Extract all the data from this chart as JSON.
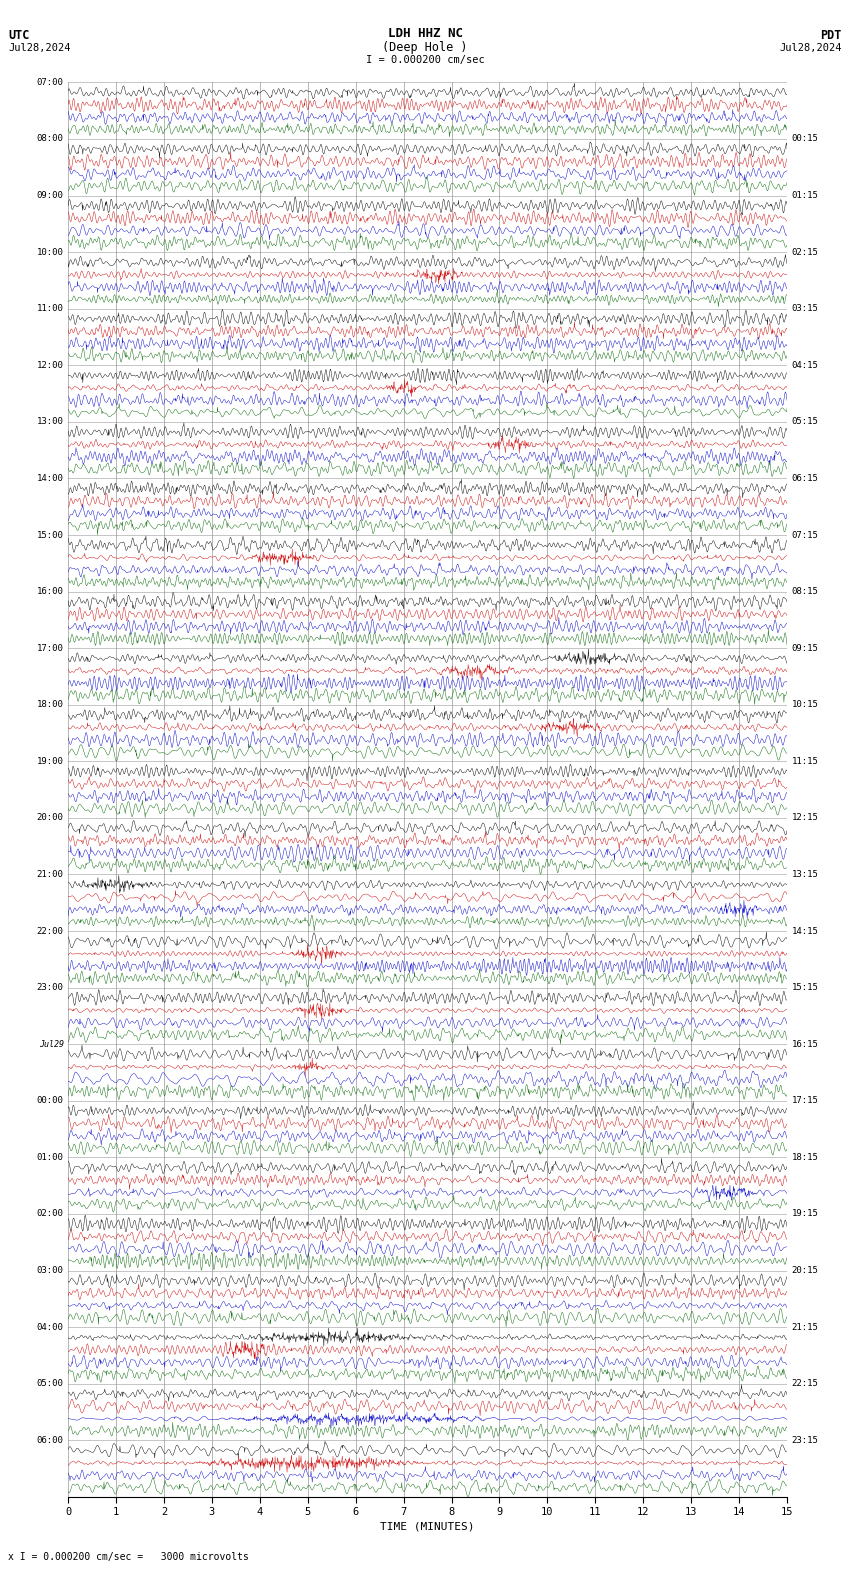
{
  "title_line1": "LDH HHZ NC",
  "title_line2": "(Deep Hole )",
  "scale_label": "I = 0.000200 cm/sec",
  "bottom_label": "x I = 0.000200 cm/sec =   3000 microvolts",
  "utc_label": "UTC",
  "pdt_label": "PDT",
  "date_left": "Jul28,2024",
  "date_right": "Jul28,2024",
  "xlabel": "TIME (MINUTES)",
  "bg_color": "#ffffff",
  "trace_colors": [
    "#000000",
    "#cc0000",
    "#0000cc",
    "#006600"
  ],
  "grid_color": "#999999",
  "utc_times": [
    "07:00",
    "08:00",
    "09:00",
    "10:00",
    "11:00",
    "12:00",
    "13:00",
    "14:00",
    "15:00",
    "16:00",
    "17:00",
    "18:00",
    "19:00",
    "20:00",
    "21:00",
    "22:00",
    "23:00",
    "Jul29",
    "00:00",
    "01:00",
    "02:00",
    "03:00",
    "04:00",
    "05:00",
    "06:00"
  ],
  "pdt_times": [
    "00:15",
    "01:15",
    "02:15",
    "03:15",
    "04:15",
    "05:15",
    "06:15",
    "07:15",
    "08:15",
    "09:15",
    "10:15",
    "11:15",
    "12:15",
    "13:15",
    "14:15",
    "15:15",
    "16:15",
    "17:15",
    "18:15",
    "19:15",
    "20:15",
    "21:15",
    "22:15",
    "23:15"
  ],
  "n_rows": 25,
  "n_traces_per_row": 4,
  "minutes": 15,
  "base_noise": 0.025,
  "special_events": [
    {
      "row": 8,
      "trace": 1,
      "t0": 3.5,
      "t1": 5.5,
      "amp": 0.18
    },
    {
      "row": 10,
      "trace": 1,
      "t0": 7.5,
      "t1": 9.5,
      "amp": 0.14
    },
    {
      "row": 10,
      "trace": 0,
      "t0": 9.8,
      "t1": 12.0,
      "amp": 0.1
    },
    {
      "row": 14,
      "trace": 0,
      "t0": 0.0,
      "t1": 2.0,
      "amp": 0.12
    },
    {
      "row": 15,
      "trace": 1,
      "t0": 4.5,
      "t1": 6.0,
      "amp": 0.2
    },
    {
      "row": 16,
      "trace": 1,
      "t0": 4.5,
      "t1": 6.0,
      "amp": 0.2
    },
    {
      "row": 17,
      "trace": 1,
      "t0": 4.5,
      "t1": 5.5,
      "amp": 0.22
    },
    {
      "row": 6,
      "trace": 1,
      "t0": 8.5,
      "t1": 10.0,
      "amp": 0.12
    },
    {
      "row": 11,
      "trace": 1,
      "t0": 9.5,
      "t1": 11.5,
      "amp": 0.13
    },
    {
      "row": 14,
      "trace": 2,
      "t0": 13.5,
      "t1": 14.5,
      "amp": 0.12
    },
    {
      "row": 19,
      "trace": 2,
      "t0": 13.0,
      "t1": 14.5,
      "amp": 0.13
    },
    {
      "row": 22,
      "trace": 0,
      "t0": 3.0,
      "t1": 8.0,
      "amp": 0.22
    },
    {
      "row": 22,
      "trace": 1,
      "t0": 3.0,
      "t1": 4.5,
      "amp": 0.14
    },
    {
      "row": 23,
      "trace": 2,
      "t0": 2.5,
      "t1": 9.5,
      "amp": 0.18
    },
    {
      "row": 24,
      "trace": 1,
      "t0": 2.0,
      "t1": 8.0,
      "amp": 0.22
    },
    {
      "row": 5,
      "trace": 1,
      "t0": 6.5,
      "t1": 7.5,
      "amp": 0.12
    },
    {
      "row": 3,
      "trace": 1,
      "t0": 7.0,
      "t1": 8.5,
      "amp": 0.14
    }
  ]
}
